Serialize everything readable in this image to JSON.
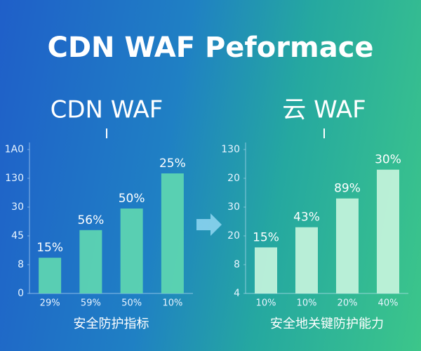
{
  "title": "CDN WAF Peformace",
  "chart_data": [
    {
      "type": "bar",
      "title": "CDN WAF",
      "x_label": "安全防护指标",
      "categories": [
        "29%",
        "59%",
        "50%",
        "10%"
      ],
      "values": [
        1.24,
        2.2,
        2.95,
        4.17
      ],
      "bar_labels": [
        "15%",
        "56%",
        "50%",
        "25%"
      ],
      "color": "#5fd8b0",
      "ylim": [
        0,
        5
      ],
      "yticks": [
        0,
        {
          "value": 1,
          "label": "8"
        },
        {
          "value": 2,
          "label": "45"
        },
        {
          "value": 3,
          "label": "30"
        },
        {
          "value": 4,
          "label": "130"
        },
        {
          "value": 5,
          "label": "1A0"
        }
      ]
    },
    {
      "type": "bar",
      "title": "云 WAF",
      "x_label": "安全地关键防护能力",
      "categories": [
        "10%",
        "10%",
        "20%",
        "40%"
      ],
      "values": [
        1.6,
        2.3,
        3.3,
        4.3
      ],
      "bar_labels": [
        "15%",
        "43%",
        "89%",
        "30%"
      ],
      "color": "#c8f5de",
      "ylim": [
        0,
        5
      ],
      "yticks": [
        {
          "value": 0,
          "label": "4"
        },
        {
          "value": 1,
          "label": "8"
        },
        {
          "value": 2,
          "label": "20"
        },
        {
          "value": 3,
          "label": "30"
        },
        {
          "value": 4,
          "label": "20"
        },
        {
          "value": 5,
          "label": "130"
        }
      ]
    }
  ]
}
